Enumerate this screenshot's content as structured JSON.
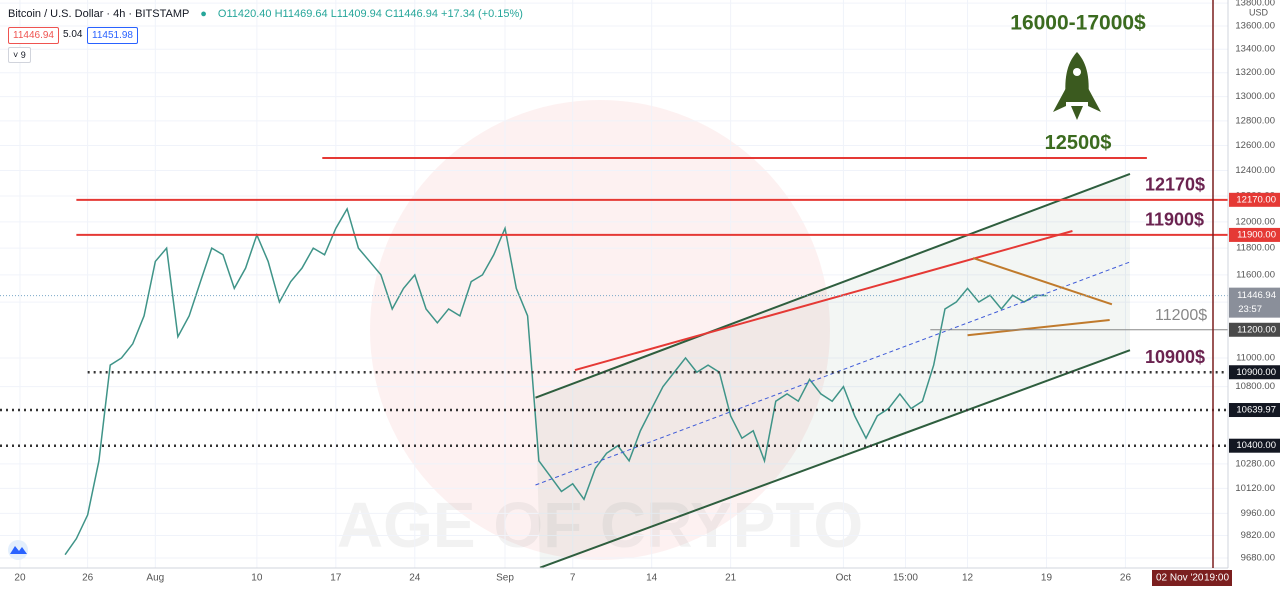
{
  "header": {
    "symbol": "Bitcoin / U.S. Dollar · 4h · BITSTAMP",
    "open": "O11420.40",
    "high": "H11469.64",
    "low": "L11409.94",
    "close": "C11446.94",
    "change": "+17.34 (+0.15%)",
    "bid": "11446.94",
    "spread": "5.04",
    "ask": "11451.98",
    "indicators": "9"
  },
  "chart_data": {
    "type": "line",
    "color": "#3f9488",
    "log_scale": true,
    "grid": true,
    "currency": "USD",
    "watermark": "AGE OF CRYPTO",
    "target": "16000-17000$",
    "x": [
      4,
      5,
      6,
      7,
      8,
      9,
      10,
      11,
      12,
      13,
      14,
      15,
      16,
      17,
      18,
      19,
      20,
      21,
      22,
      23,
      24,
      25,
      26,
      27,
      28,
      29,
      30,
      31,
      32,
      33,
      34,
      35,
      36,
      37,
      38,
      39,
      40,
      41,
      42,
      43,
      44,
      45,
      46,
      47,
      48,
      49,
      50,
      51,
      52,
      53,
      54,
      55,
      56,
      57,
      58,
      59,
      60,
      61,
      62,
      63,
      64,
      65,
      66,
      67,
      68,
      69,
      70,
      71,
      72,
      73,
      74,
      75,
      76,
      77,
      78,
      79,
      80,
      81,
      82,
      83,
      84,
      85,
      86,
      87,
      88,
      89,
      90,
      91
    ],
    "values": [
      9700,
      9800,
      9950,
      10300,
      10950,
      11000,
      11100,
      11300,
      11700,
      11800,
      11150,
      11300,
      11550,
      11800,
      11750,
      11500,
      11650,
      11900,
      11700,
      11400,
      11550,
      11650,
      11800,
      11750,
      11950,
      12100,
      11800,
      11700,
      11600,
      11350,
      11500,
      11600,
      11350,
      11250,
      11350,
      11300,
      11550,
      11600,
      11750,
      11950,
      11500,
      11300,
      10300,
      10200,
      10100,
      10150,
      10050,
      10250,
      10350,
      10400,
      10300,
      10500,
      10650,
      10800,
      10900,
      11000,
      10900,
      10950,
      10900,
      10600,
      10450,
      10500,
      10300,
      10700,
      10750,
      10700,
      10850,
      10750,
      10700,
      10800,
      10600,
      10450,
      10600,
      10650,
      10750,
      10650,
      10700,
      10950,
      11350,
      11400,
      11500,
      11400,
      11450,
      11350,
      11450,
      11400,
      11450,
      11446.94
    ],
    "xlim": [
      -1.77,
      107.09
    ],
    "ylim": [
      9618,
      13828
    ],
    "xticks": [
      {
        "value": 0,
        "label": "20"
      },
      {
        "value": 6,
        "label": "26"
      },
      {
        "value": 12,
        "label": "Aug"
      },
      {
        "value": 21,
        "label": "10"
      },
      {
        "value": 28,
        "label": "17"
      },
      {
        "value": 35,
        "label": "24"
      },
      {
        "value": 43,
        "label": "Sep"
      },
      {
        "value": 49,
        "label": "7"
      },
      {
        "value": 56,
        "label": "14"
      },
      {
        "value": 63,
        "label": "21"
      },
      {
        "value": 73,
        "label": "Oct"
      },
      {
        "value": 78.5,
        "label": "15:00"
      },
      {
        "value": 84,
        "label": "12"
      },
      {
        "value": 91,
        "label": "19"
      },
      {
        "value": 98,
        "label": "26"
      }
    ],
    "yticks": [
      {
        "value": 13800,
        "label": "13800.00"
      },
      {
        "value": 13600,
        "label": "13600.00"
      },
      {
        "value": 13400,
        "label": "13400.00"
      },
      {
        "value": 13200,
        "label": "13200.00"
      },
      {
        "value": 13000,
        "label": "13000.00"
      },
      {
        "value": 12800,
        "label": "12800.00"
      },
      {
        "value": 12600,
        "label": "12600.00"
      },
      {
        "value": 12400,
        "label": "12400.00"
      },
      {
        "value": 12200,
        "label": "12200.00"
      },
      {
        "value": 12000,
        "label": "12000.00"
      },
      {
        "value": 11800,
        "label": "11800.00"
      },
      {
        "value": 11600,
        "label": "11600.00"
      },
      {
        "value": 11400,
        "label": "11400.00"
      },
      {
        "value": 11000,
        "label": "11000.00"
      },
      {
        "value": 10800,
        "label": "10800.00"
      },
      {
        "value": 10280,
        "label": "10280.00"
      },
      {
        "value": 10120,
        "label": "10120.00"
      },
      {
        "value": 9960,
        "label": "9960.00"
      },
      {
        "value": 9820,
        "label": "9820.00"
      },
      {
        "value": 9680,
        "label": "9680.00"
      }
    ],
    "levels": [
      {
        "value": 12500,
        "label": "12500$",
        "color": "#e53935",
        "label_color": "#3b6b1f",
        "style": "solid",
        "from": 26.8,
        "to": 99.9
      },
      {
        "value": 12170,
        "label": "12170$",
        "tag": "12170.00",
        "color": "#e53935",
        "label_color": "#6b2350",
        "style": "solid",
        "from": 5
      },
      {
        "value": 11900,
        "label": "11900$",
        "tag": "11900.00",
        "color": "#e53935",
        "label_color": "#6b2350",
        "style": "solid",
        "from": 5
      },
      {
        "value": 11200,
        "label": "11200$",
        "tag": "11200.00",
        "color": "#888888",
        "label_color": "#888888",
        "style": "solid",
        "from": 80.7
      },
      {
        "value": 10900,
        "label": "10900$",
        "tag": "10900.00",
        "color": "#333333",
        "label_color": "#6b2350",
        "style": "dotted",
        "from": 6
      },
      {
        "value": 10639.97,
        "tag": "10639.97",
        "color": "#333333",
        "style": "dotted",
        "from": -1.77
      },
      {
        "value": 10400,
        "tag": "10400.00",
        "color": "#333333",
        "style": "dotted",
        "from": -1.77
      }
    ],
    "last": {
      "value": 11446.94,
      "label": "11446.94",
      "countdown": "23:57"
    },
    "trendlines": [
      {
        "points": [
          [
            45.7,
            10724
          ],
          [
            98.4,
            12373
          ]
        ],
        "color": "#2e5e3e",
        "dash": false
      },
      {
        "points": [
          [
            46.1,
            9620
          ],
          [
            98.4,
            11055
          ]
        ],
        "color": "#2e5e3e",
        "dash": false
      },
      {
        "points": [
          [
            45.7,
            10142
          ],
          [
            98.4,
            11696
          ]
        ],
        "color": "#3f5bd8",
        "dash": true
      },
      {
        "points": [
          [
            49.2,
            10915
          ],
          [
            93.3,
            11930
          ]
        ],
        "color": "#e53935",
        "dash": false
      },
      {
        "points": [
          [
            84.5,
            11725
          ],
          [
            96.8,
            11384
          ]
        ],
        "color": "#c07a2c",
        "dash": false
      },
      {
        "points": [
          [
            84.0,
            11161
          ],
          [
            96.6,
            11270
          ]
        ],
        "color": "#c07a2c",
        "dash": false
      }
    ],
    "cursor": {
      "date": "02 Nov '20",
      "time": "19:00"
    }
  }
}
